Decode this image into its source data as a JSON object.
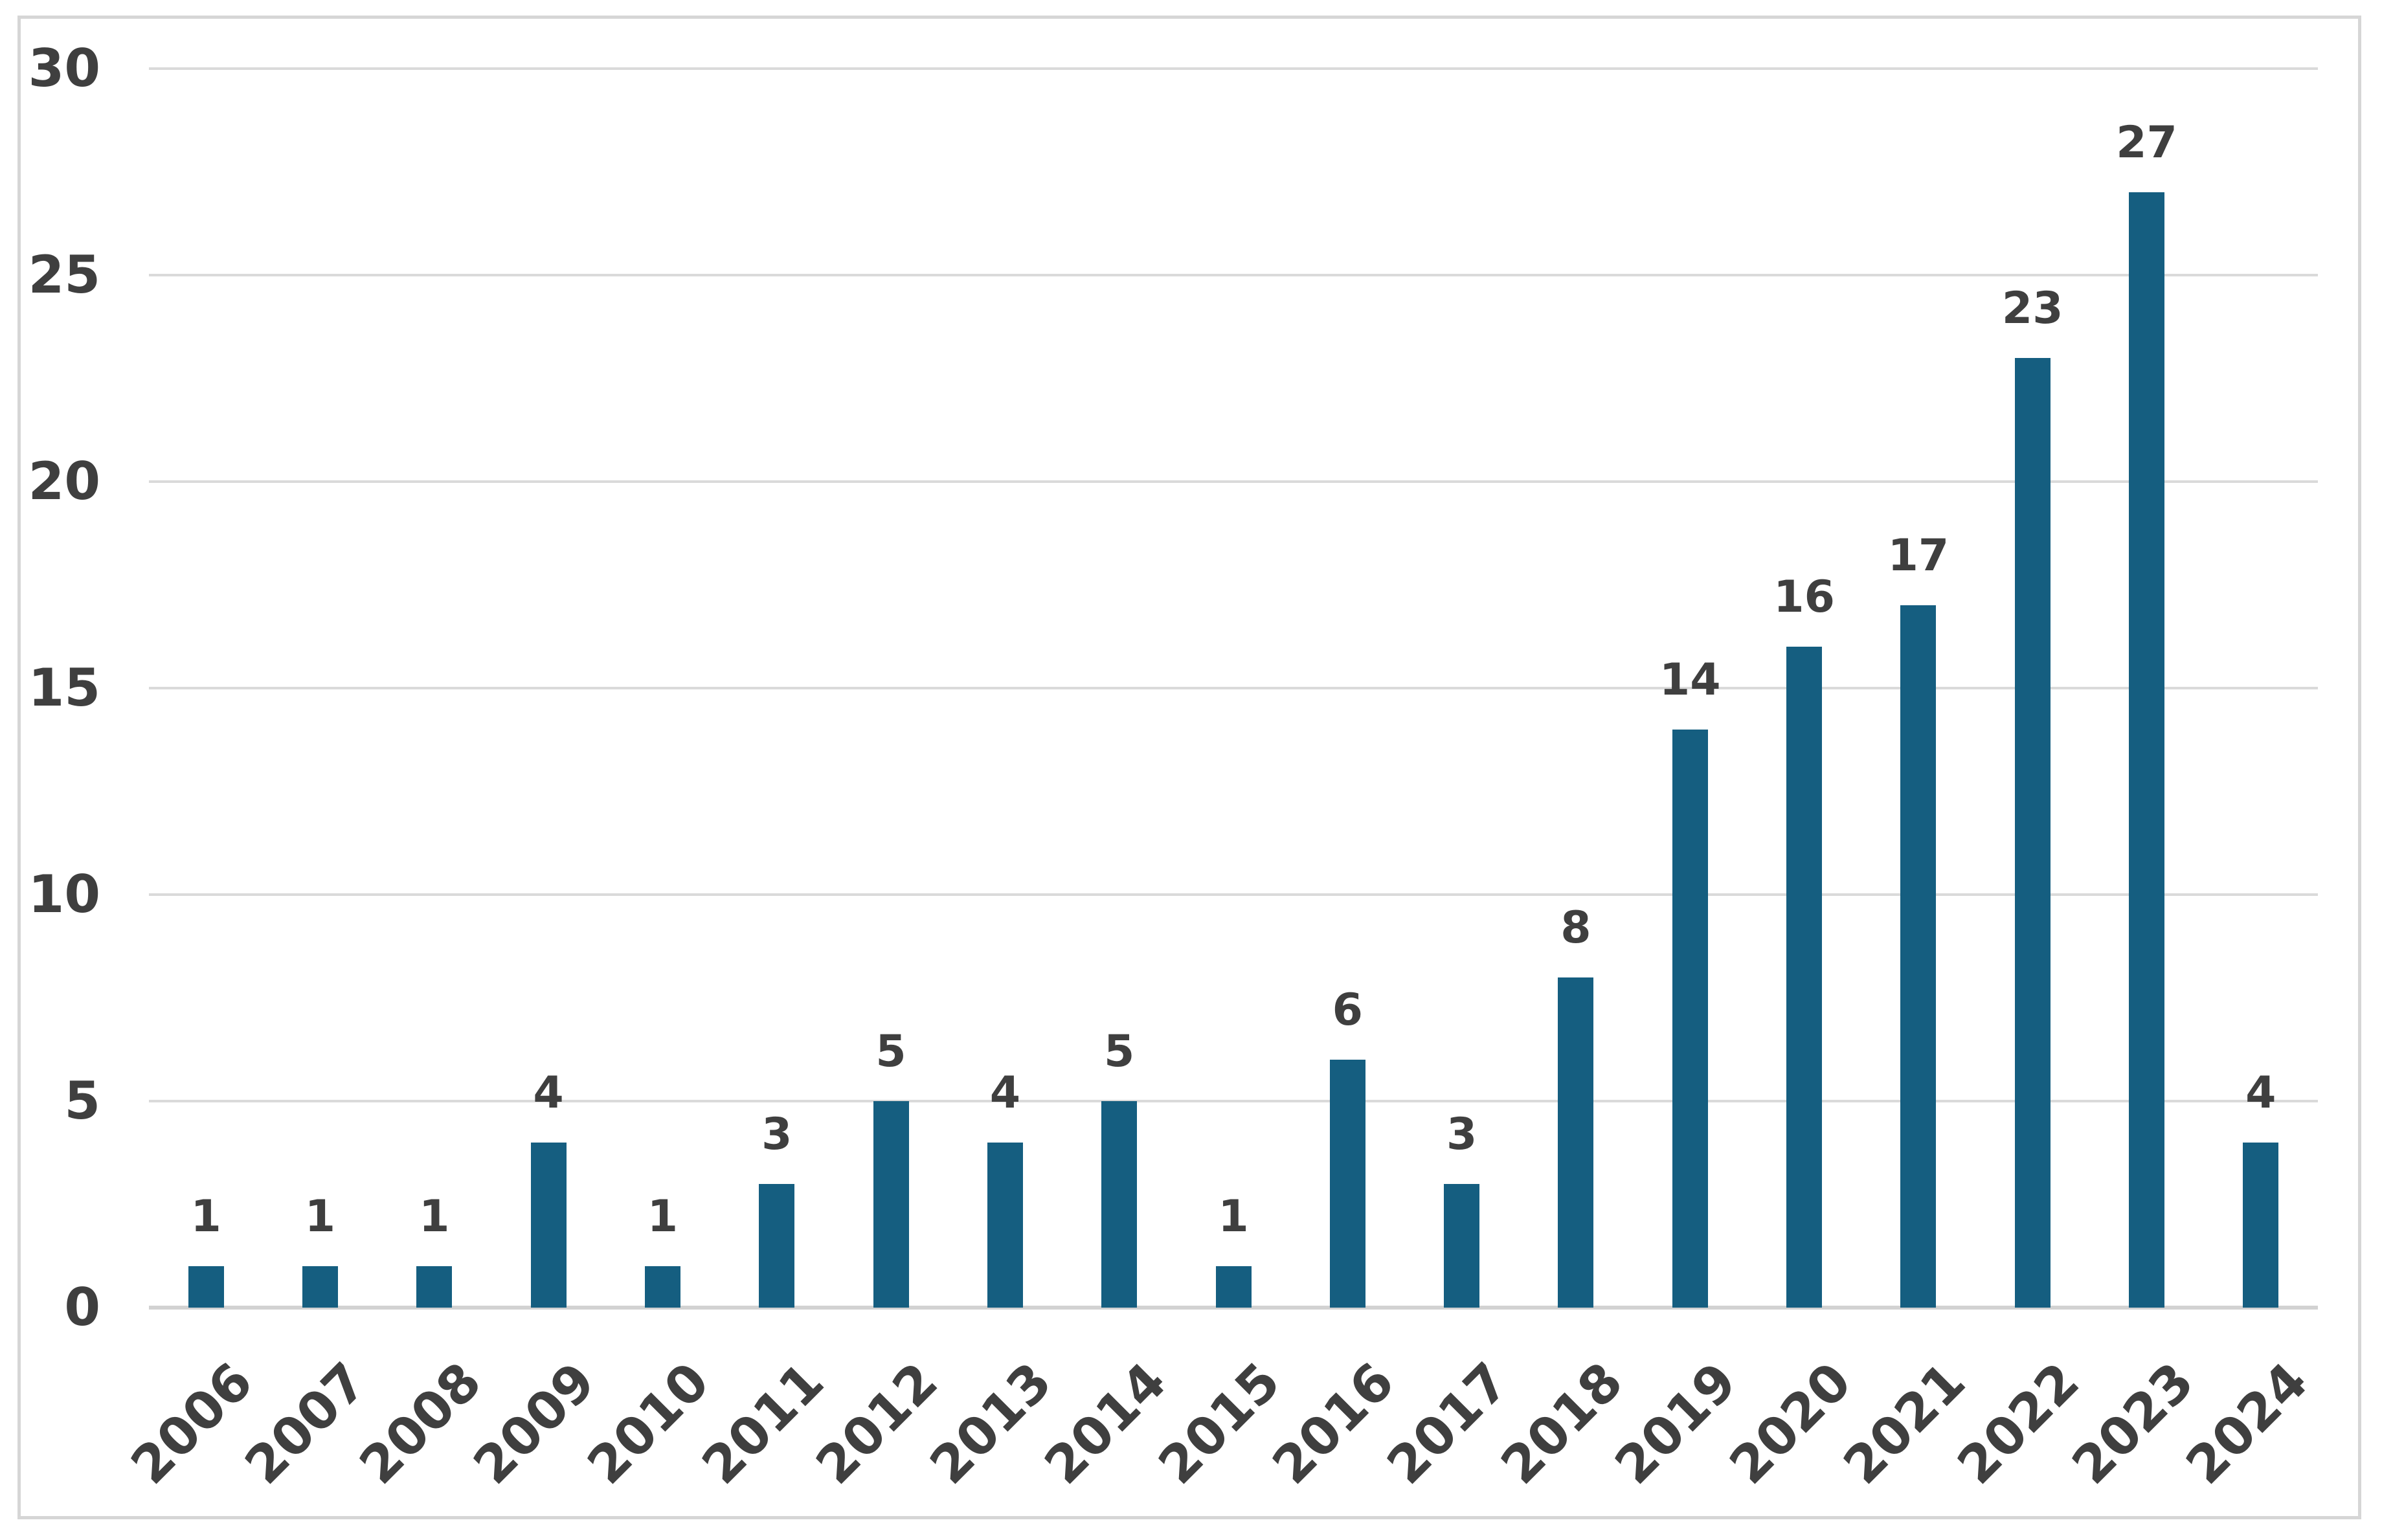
{
  "chart_data": {
    "type": "bar",
    "title": "",
    "xlabel": "",
    "ylabel": "",
    "categories": [
      "2006",
      "2007",
      "2008",
      "2009",
      "2010",
      "2011",
      "2012",
      "2013",
      "2014",
      "2015",
      "2016",
      "2017",
      "2018",
      "2019",
      "2020",
      "2021",
      "2022",
      "2023",
      "2024"
    ],
    "values": [
      1,
      1,
      1,
      4,
      1,
      3,
      5,
      4,
      5,
      1,
      6,
      3,
      8,
      14,
      16,
      17,
      23,
      27,
      4
    ],
    "ylim": [
      0,
      30
    ],
    "yticks": [
      0,
      5,
      10,
      15,
      20,
      25,
      30
    ],
    "grid": true,
    "legend": false,
    "show_data_labels": true,
    "colors": {
      "bar": "#155e80",
      "label_text": "#3f3f3f",
      "gridline": "#dadada",
      "axis_line": "#d2d2d2",
      "frame_border": "#d6d6d6",
      "background": "#ffffff"
    }
  }
}
